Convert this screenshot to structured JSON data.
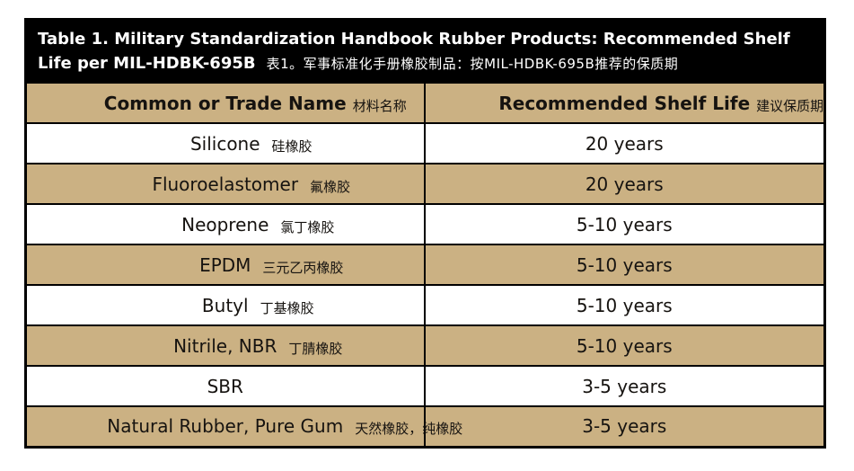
{
  "title": {
    "line1": "Table 1. Military Standardization Handbook Rubber Products: Recommended Shelf",
    "line2_en": "Life per MIL-HDBK-695B",
    "line2_zh": "表1。军事标准化手册橡胶制品：按MIL-HDBK-695B推荐的保质期"
  },
  "header": {
    "name_en": "Common or Trade Name",
    "name_zh": "材料名称",
    "life_en": "Recommended Shelf Life",
    "life_zh": "建议保质期"
  },
  "rows": [
    {
      "name_en": "Silicone",
      "name_zh": "硅橡胶",
      "life": "20 years"
    },
    {
      "name_en": "Fluoroelastomer",
      "name_zh": "氟橡胶",
      "life": "20 years"
    },
    {
      "name_en": "Neoprene",
      "name_zh": "氯丁橡胶",
      "life": "5-10 years"
    },
    {
      "name_en": "EPDM",
      "name_zh": "三元乙丙橡胶",
      "life": "5-10 years"
    },
    {
      "name_en": "Butyl",
      "name_zh": "丁基橡胶",
      "life": "5-10 years"
    },
    {
      "name_en": "Nitrile, NBR",
      "name_zh": "丁腈橡胶",
      "life": "5-10 years"
    },
    {
      "name_en": "SBR",
      "name_zh": "",
      "life": "3-5 years"
    },
    {
      "name_en": "Natural Rubber, Pure Gum",
      "name_zh": "天然橡胶，纯橡胶",
      "life": "3-5 years"
    }
  ],
  "colors": {
    "band_bg": "#000000",
    "band_text": "#ffffff",
    "row_tan": "#cbb183",
    "row_white": "#ffffff",
    "border": "#000000",
    "text": "#161310"
  },
  "chart_data": {
    "type": "table",
    "title": "Table 1. Military Standardization Handbook Rubber Products: Recommended Shelf Life per MIL-HDBK-695B",
    "columns": [
      "Common or Trade Name",
      "Recommended Shelf Life"
    ],
    "rows": [
      [
        "Silicone",
        "20 years"
      ],
      [
        "Fluoroelastomer",
        "20 years"
      ],
      [
        "Neoprene",
        "5-10 years"
      ],
      [
        "EPDM",
        "5-10 years"
      ],
      [
        "Butyl",
        "5-10 years"
      ],
      [
        "Nitrile, NBR",
        "5-10 years"
      ],
      [
        "SBR",
        "3-5 years"
      ],
      [
        "Natural Rubber, Pure Gum",
        "3-5 years"
      ]
    ]
  }
}
